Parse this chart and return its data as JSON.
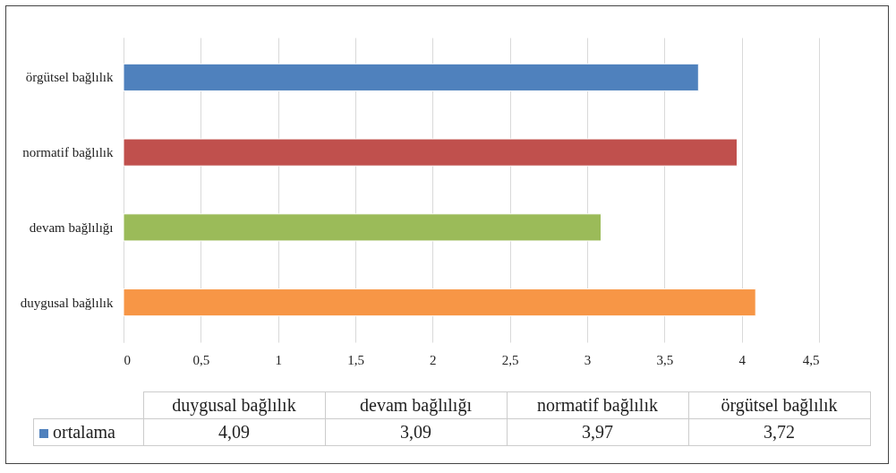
{
  "chart_data": {
    "type": "bar",
    "orientation": "horizontal",
    "categories": [
      "örgütsel bağlılık",
      "normatif bağlılık",
      "devam bağlılığı",
      "duygusal bağlılık"
    ],
    "series": [
      {
        "name": "ortalama",
        "colors": [
          "#4f81bd",
          "#c0504d",
          "#9bbb59",
          "#f79646"
        ],
        "values": [
          3.72,
          3.97,
          3.09,
          4.09
        ]
      }
    ],
    "value_labels": [
      "3,72",
      "3,97",
      "3,09",
      "4,09"
    ],
    "xlim": [
      0,
      4.5
    ],
    "xticks": [
      0,
      {
        "value": 0.5,
        "label": "0,5"
      },
      1,
      {
        "value": 1.5,
        "label": "1,5"
      },
      2,
      {
        "value": 2.5,
        "label": "2,5"
      },
      3,
      {
        "value": 3.5,
        "label": "3,5"
      },
      4,
      {
        "value": 4.5,
        "label": "4,5"
      }
    ],
    "grid": "x",
    "legend": "bottom left"
  }
}
